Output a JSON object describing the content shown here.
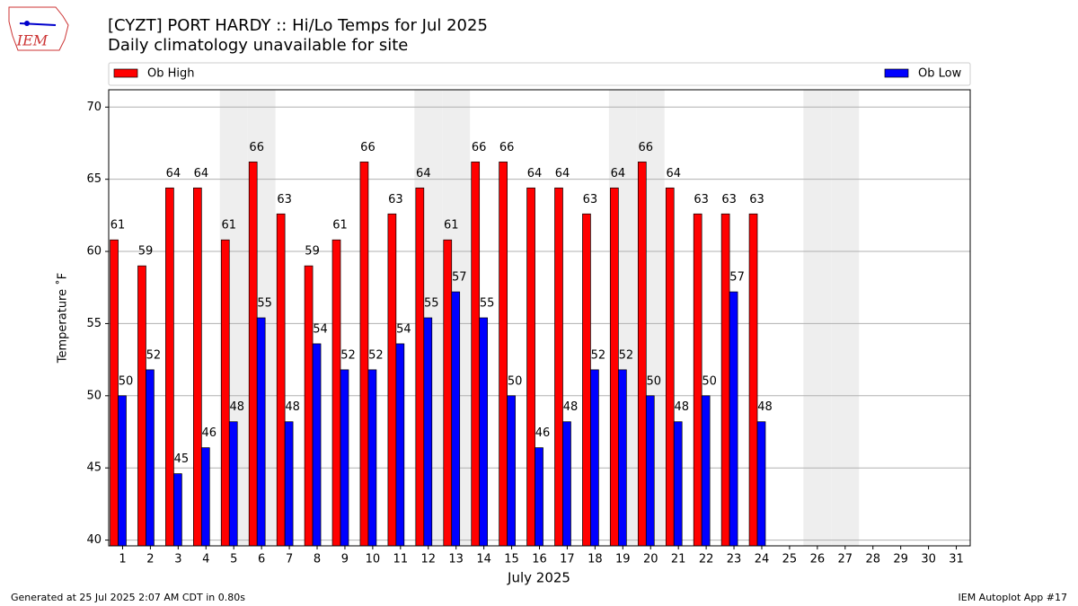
{
  "chart_data": {
    "type": "bar",
    "title": "[CYZT] PORT HARDY :: Hi/Lo Temps for Jul 2025",
    "subtitle": "Daily climatology unavailable for site",
    "y_label": "Temperature ˚F",
    "x_label": "July 2025",
    "footer_left": "Generated at 25 Jul 2025 2:07 AM CDT in 0.80s",
    "footer_right": "IEM Autoplot App #17",
    "logo_text": "IEM",
    "categories": [
      "1",
      "2",
      "3",
      "4",
      "5",
      "6",
      "7",
      "8",
      "9",
      "10",
      "11",
      "12",
      "13",
      "14",
      "15",
      "16",
      "17",
      "18",
      "19",
      "20",
      "21",
      "22",
      "23",
      "24",
      "25",
      "26",
      "27",
      "28",
      "29",
      "30",
      "31"
    ],
    "shaded_categories": [
      "5",
      "6",
      "12",
      "13",
      "19",
      "20",
      "26",
      "27"
    ],
    "series": [
      {
        "name": "Ob High",
        "color": "#ff0000",
        "values": [
          60.8,
          59,
          64.4,
          64.4,
          60.8,
          66.2,
          62.6,
          59,
          60.8,
          66.2,
          62.6,
          64.4,
          60.8,
          66.2,
          66.2,
          64.4,
          64.4,
          62.6,
          64.4,
          66.2,
          64.4,
          62.6,
          62.6,
          62.6,
          null,
          null,
          null,
          null,
          null,
          null,
          null
        ],
        "value_labels": [
          "61",
          "59",
          "64",
          "64",
          "61",
          "66",
          "63",
          "59",
          "61",
          "66",
          "63",
          "64",
          "61",
          "66",
          "66",
          "64",
          "64",
          "63",
          "64",
          "66",
          "64",
          "63",
          "63",
          "63",
          null,
          null,
          null,
          null,
          null,
          null,
          null
        ]
      },
      {
        "name": "Ob Low",
        "color": "#0000ff",
        "values": [
          50,
          51.8,
          44.6,
          46.4,
          48.2,
          55.4,
          48.2,
          53.6,
          51.8,
          51.8,
          53.6,
          55.4,
          57.2,
          55.4,
          50,
          46.4,
          48.2,
          51.8,
          51.8,
          50,
          48.2,
          50,
          57.2,
          48.2,
          null,
          null,
          null,
          null,
          null,
          null,
          null
        ],
        "value_labels": [
          "50",
          "52",
          "45",
          "46",
          "48",
          "55",
          "48",
          "54",
          "52",
          "52",
          "54",
          "55",
          "57",
          "55",
          "50",
          "46",
          "48",
          "52",
          "52",
          "50",
          "48",
          "50",
          "57",
          "48",
          null,
          null,
          null,
          null,
          null,
          null,
          null
        ]
      }
    ],
    "ylim": [
      39.6,
      71.2
    ],
    "yticks": [
      40,
      45,
      50,
      55,
      60,
      65,
      70
    ],
    "grid": true
  }
}
